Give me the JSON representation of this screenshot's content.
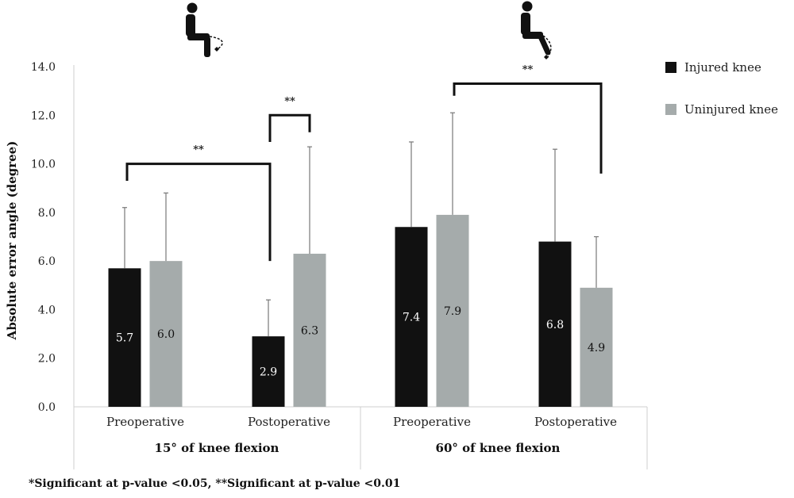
{
  "chart_data": {
    "type": "bar",
    "ylabel": "Absolute error angle (degree)",
    "ylim": [
      0,
      14
    ],
    "yticks": [
      "0.0",
      "2.0",
      "4.0",
      "6.0",
      "8.0",
      "10.0",
      "12.0",
      "14.0"
    ],
    "groups": [
      {
        "label": "15° of knee flexion",
        "categories": [
          "Preoperative",
          "Postoperative"
        ]
      },
      {
        "label": "60° of knee flexion",
        "categories": [
          "Preoperative",
          "Postoperative"
        ]
      }
    ],
    "series": [
      {
        "name": "Injured knee",
        "color": "#111111",
        "values": [
          5.7,
          2.9,
          7.4,
          6.8
        ],
        "value_labels": [
          "5.7",
          "2.9",
          "7.4",
          "6.8"
        ],
        "error_upper": [
          8.2,
          4.4,
          10.9,
          10.6
        ]
      },
      {
        "name": "Uninjured knee",
        "color": "#a5abab",
        "values": [
          6.0,
          6.3,
          7.9,
          4.9
        ],
        "value_labels": [
          "6.0",
          "6.3",
          "7.9",
          "4.9"
        ],
        "error_upper": [
          8.8,
          10.7,
          12.1,
          7.0
        ]
      }
    ],
    "significance": [
      {
        "label": "**",
        "from": "15° Preoperative Injured knee",
        "to": "15° Postoperative Injured knee"
      },
      {
        "label": "**",
        "from": "15° Postoperative Injured knee",
        "to": "15° Postoperative Uninjured knee"
      },
      {
        "label": "**",
        "from": "60° Preoperative Uninjured knee",
        "to": "60° Postoperative Uninjured knee"
      }
    ],
    "legend_position": "top-right",
    "grid": false,
    "icons": [
      "seated-person-15-degree-icon",
      "seated-person-60-degree-icon"
    ],
    "footnote": "*Significant at p-value <0.05, **Significant at p-value <0.01"
  }
}
